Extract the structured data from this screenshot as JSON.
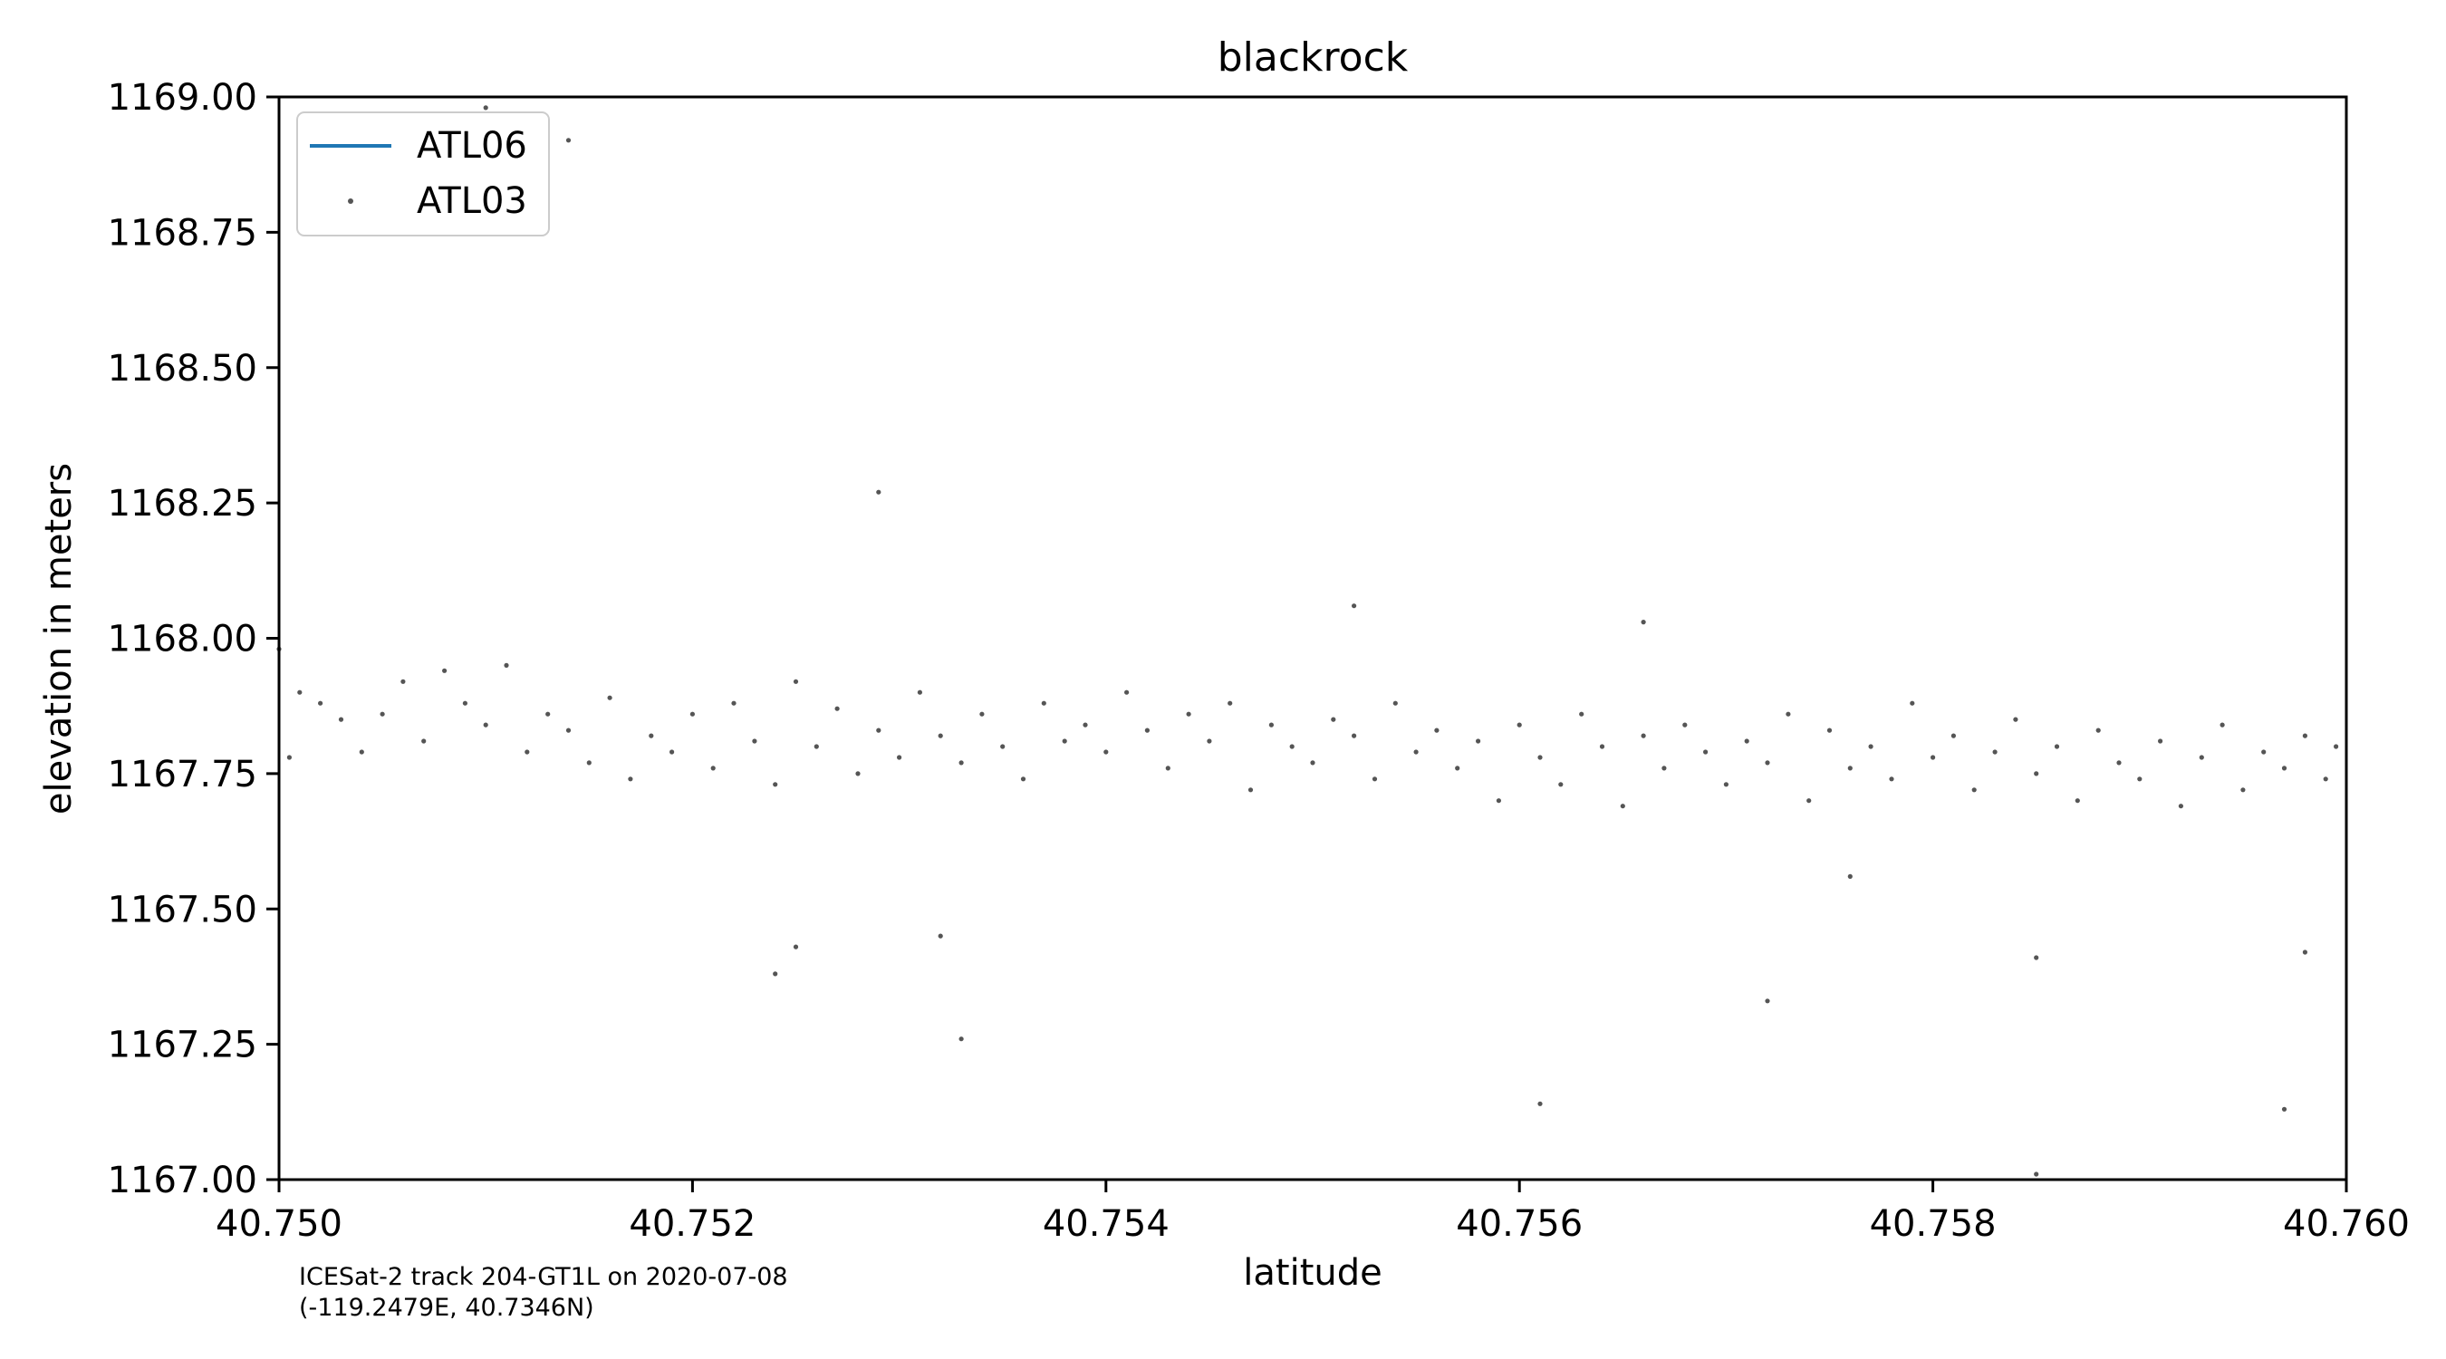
{
  "chart_data": {
    "type": "scatter",
    "title": "blackrock",
    "xlabel": "latitude",
    "ylabel": "elevation in meters",
    "xlim": [
      40.75,
      40.76
    ],
    "ylim": [
      1167.0,
      1169.0
    ],
    "xticks": [
      "40.750",
      "40.752",
      "40.754",
      "40.756",
      "40.758",
      "40.760"
    ],
    "yticks": [
      "1167.00",
      "1167.25",
      "1167.50",
      "1167.75",
      "1168.00",
      "1168.25",
      "1168.50",
      "1168.75",
      "1169.00"
    ],
    "grid": false,
    "legend_position": "upper-left",
    "legend": [
      "ATL06",
      "ATL03"
    ],
    "annotation_lines": [
      "ICESat-2 track 204-GT1L on 2020-07-08",
      "(-119.2479E, 40.7346N)"
    ],
    "colors": {
      "atl06": "#1f77b4",
      "atl03": "#555555"
    },
    "series": [
      {
        "name": "ATL06",
        "type": "line",
        "x": [],
        "y": []
      },
      {
        "name": "ATL03",
        "type": "scatter",
        "x": [
          40.75,
          40.7501,
          40.75005,
          40.7502,
          40.7503,
          40.7504,
          40.7505,
          40.7506,
          40.7507,
          40.7508,
          40.7509,
          40.751,
          40.7511,
          40.7512,
          40.7513,
          40.7514,
          40.7515,
          40.7516,
          40.7517,
          40.7518,
          40.7519,
          40.752,
          40.7521,
          40.7522,
          40.7523,
          40.7524,
          40.7525,
          40.7526,
          40.7527,
          40.7528,
          40.7529,
          40.753,
          40.7531,
          40.7532,
          40.7533,
          40.7534,
          40.7535,
          40.7536,
          40.7537,
          40.7538,
          40.7539,
          40.754,
          40.7541,
          40.7542,
          40.7543,
          40.7544,
          40.7545,
          40.7546,
          40.7547,
          40.7548,
          40.7549,
          40.755,
          40.7551,
          40.7552,
          40.7553,
          40.7554,
          40.7555,
          40.7556,
          40.7557,
          40.7558,
          40.7559,
          40.756,
          40.7561,
          40.7562,
          40.7563,
          40.7564,
          40.7565,
          40.7566,
          40.7567,
          40.7568,
          40.7569,
          40.757,
          40.7571,
          40.7572,
          40.7573,
          40.7574,
          40.7575,
          40.7576,
          40.7577,
          40.7578,
          40.7579,
          40.758,
          40.7581,
          40.7582,
          40.7583,
          40.7584,
          40.7585,
          40.7586,
          40.7587,
          40.7588,
          40.7589,
          40.759,
          40.7591,
          40.7592,
          40.7593,
          40.7594,
          40.7595,
          40.7596,
          40.7597,
          40.7598,
          40.7599,
          40.75995,
          40.751,
          40.7514,
          40.7529,
          40.7552,
          40.7532,
          40.7533,
          40.7524,
          40.7525,
          40.7561,
          40.7566,
          40.7572,
          40.7576,
          40.7585,
          40.7597,
          40.7585,
          40.7598
        ],
        "y": [
          1167.98,
          1167.9,
          1167.78,
          1167.88,
          1167.85,
          1167.79,
          1167.86,
          1167.92,
          1167.81,
          1167.94,
          1167.88,
          1167.84,
          1167.95,
          1167.79,
          1167.86,
          1167.83,
          1167.77,
          1167.89,
          1167.74,
          1167.82,
          1167.79,
          1167.86,
          1167.76,
          1167.88,
          1167.81,
          1167.73,
          1167.92,
          1167.8,
          1167.87,
          1167.75,
          1167.83,
          1167.78,
          1167.9,
          1167.82,
          1167.77,
          1167.86,
          1167.8,
          1167.74,
          1167.88,
          1167.81,
          1167.84,
          1167.79,
          1167.9,
          1167.83,
          1167.76,
          1167.86,
          1167.81,
          1167.88,
          1167.72,
          1167.84,
          1167.8,
          1167.77,
          1167.85,
          1167.82,
          1167.74,
          1167.88,
          1167.79,
          1167.83,
          1167.76,
          1167.81,
          1167.7,
          1167.84,
          1167.78,
          1167.73,
          1167.86,
          1167.8,
          1167.69,
          1167.82,
          1167.76,
          1167.84,
          1167.79,
          1167.73,
          1167.81,
          1167.77,
          1167.86,
          1167.7,
          1167.83,
          1167.76,
          1167.8,
          1167.74,
          1167.88,
          1167.78,
          1167.82,
          1167.72,
          1167.79,
          1167.85,
          1167.75,
          1167.8,
          1167.7,
          1167.83,
          1167.77,
          1167.74,
          1167.81,
          1167.69,
          1167.78,
          1167.84,
          1167.72,
          1167.79,
          1167.76,
          1167.82,
          1167.74,
          1167.8,
          1168.98,
          1168.92,
          1168.27,
          1168.06,
          1167.45,
          1167.26,
          1167.38,
          1167.43,
          1167.14,
          1168.03,
          1167.33,
          1167.56,
          1167.41,
          1167.13,
          1167.01,
          1167.42
        ]
      }
    ]
  }
}
